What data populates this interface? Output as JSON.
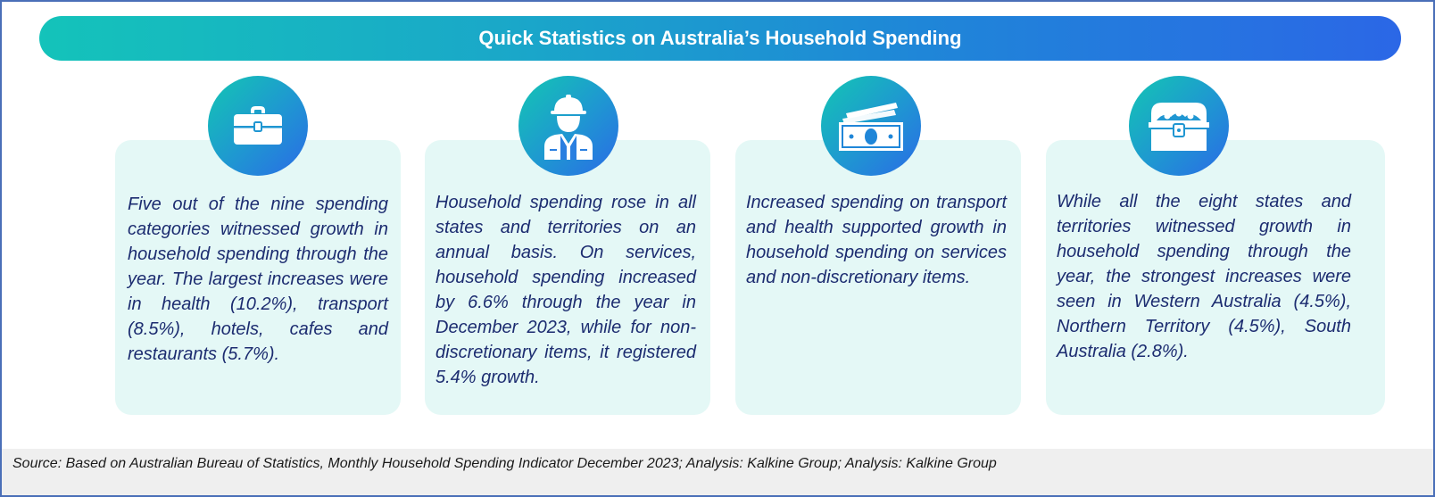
{
  "banner": {
    "title": "Quick Statistics on Australia’s Household Spending"
  },
  "cards": [
    {
      "icon": "briefcase-icon",
      "text": "Five out of the nine spending categories witnessed growth in household spending through the year. The largest increases were in health (10.2%), transport (8.5%), hotels, cafes and restaurants (5.7%)."
    },
    {
      "icon": "construction-worker-icon",
      "text": "Household spending rose in all states and territories on an annual basis. On services, household spending increased by 6.6% through the year in December 2023, while for non-discretionary items, it registered 5.4% growth."
    },
    {
      "icon": "banknotes-icon",
      "text": "Increased spending on transport and health supported growth in household spending on services and non-discretionary items."
    },
    {
      "icon": "treasure-chest-icon",
      "text": "While all the eight states and territories witnessed growth in household spending through the year, the strongest increases were seen in Western Australia (4.5%), Northern Territory (4.5%), South Australia (2.8%)."
    }
  ],
  "footer": {
    "source": "Source: Based on Australian Bureau of Statistics, Monthly Household Spending Indicator December 2023; Analysis: Kalkine Group; Analysis: Kalkine Group"
  },
  "colors": {
    "banner_start": "#14c3ba",
    "banner_end": "#2b67e6",
    "card_background": "#e4f8f6",
    "card_text": "#1c2c70",
    "footer_background": "#efefef"
  }
}
